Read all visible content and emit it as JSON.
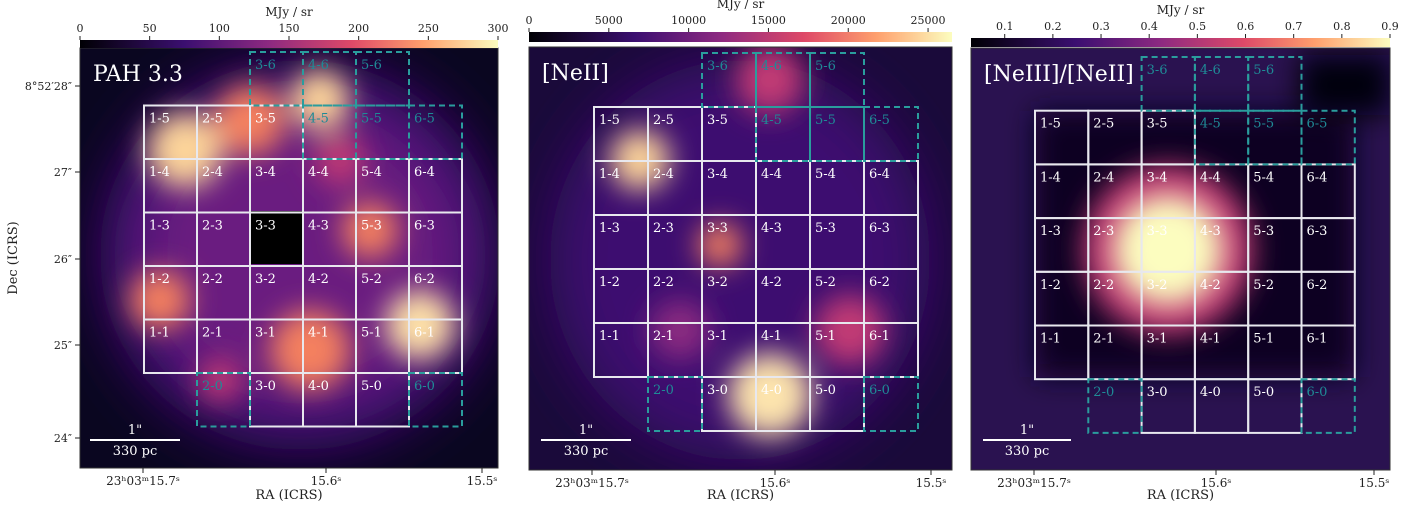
{
  "panels": [
    {
      "title": "PAH 3.3",
      "colorbar": {
        "label": "MJy / sr",
        "range": [
          0,
          300
        ],
        "ticks": [
          0,
          50,
          100,
          150,
          200,
          250,
          300
        ]
      },
      "x_axis": {
        "label": "RA (ICRS)",
        "ticks": [
          "23ʰ03ᵐ15.7ˢ",
          "15.6ˢ",
          "15.5ˢ"
        ]
      },
      "y_axis": {
        "label": "Dec (ICRS)",
        "ticks": [
          "8°52′28″",
          "27″",
          "26″",
          "25″",
          "24″"
        ]
      },
      "scale_bar": {
        "length": "1\"",
        "distance": "330 pc"
      },
      "cells": [
        {
          "label": "3-6",
          "outline": "dashed"
        },
        {
          "label": "4-6",
          "outline": "dashed"
        },
        {
          "label": "5-6",
          "outline": "dashed"
        },
        {
          "label": "1-5",
          "outline": "solid"
        },
        {
          "label": "2-5",
          "outline": "solid"
        },
        {
          "label": "3-5",
          "outline": "solid"
        },
        {
          "label": "4-5",
          "outline": "dashed"
        },
        {
          "label": "5-5",
          "outline": "dashed"
        },
        {
          "label": "6-5",
          "outline": "dashed"
        },
        {
          "label": "1-4",
          "outline": "solid"
        },
        {
          "label": "2-4",
          "outline": "solid"
        },
        {
          "label": "3-4",
          "outline": "solid"
        },
        {
          "label": "4-4",
          "outline": "solid"
        },
        {
          "label": "5-4",
          "outline": "solid"
        },
        {
          "label": "6-4",
          "outline": "solid"
        },
        {
          "label": "1-3",
          "outline": "solid"
        },
        {
          "label": "2-3",
          "outline": "solid"
        },
        {
          "label": "3-3",
          "outline": "solid"
        },
        {
          "label": "4-3",
          "outline": "solid"
        },
        {
          "label": "5-3",
          "outline": "solid"
        },
        {
          "label": "6-3",
          "outline": "solid"
        },
        {
          "label": "1-2",
          "outline": "solid"
        },
        {
          "label": "2-2",
          "outline": "solid"
        },
        {
          "label": "3-2",
          "outline": "solid"
        },
        {
          "label": "4-2",
          "outline": "solid"
        },
        {
          "label": "5-2",
          "outline": "solid"
        },
        {
          "label": "6-2",
          "outline": "solid"
        },
        {
          "label": "1-1",
          "outline": "solid"
        },
        {
          "label": "2-1",
          "outline": "solid"
        },
        {
          "label": "3-1",
          "outline": "solid"
        },
        {
          "label": "4-1",
          "outline": "solid"
        },
        {
          "label": "5-1",
          "outline": "solid"
        },
        {
          "label": "6-1",
          "outline": "solid"
        },
        {
          "label": "2-0",
          "outline": "dashed"
        },
        {
          "label": "3-0",
          "outline": "solid"
        },
        {
          "label": "4-0",
          "outline": "solid"
        },
        {
          "label": "5-0",
          "outline": "solid"
        },
        {
          "label": "6-0",
          "outline": "dashed"
        }
      ]
    },
    {
      "title": "[NeII]",
      "colorbar": {
        "label": "MJy / sr",
        "range": [
          0,
          26500
        ],
        "ticks": [
          0,
          5000,
          10000,
          15000,
          20000,
          25000
        ]
      },
      "x_axis": {
        "label": "RA (ICRS)",
        "ticks": [
          "23ʰ03ᵐ15.7ˢ",
          "15.6ˢ",
          "15.5ˢ"
        ]
      },
      "scale_bar": {
        "length": "1\"",
        "distance": "330 pc"
      },
      "cells": [
        {
          "label": "3-6",
          "outline": "dashed"
        },
        {
          "label": "4-6",
          "outline": "dashed"
        },
        {
          "label": "5-6",
          "outline": "dashed"
        },
        {
          "label": "1-5",
          "outline": "solid"
        },
        {
          "label": "2-5",
          "outline": "solid"
        },
        {
          "label": "3-5",
          "outline": "solid"
        },
        {
          "label": "4-5",
          "outline": "dashed"
        },
        {
          "label": "5-5",
          "outline": "dashed"
        },
        {
          "label": "6-5",
          "outline": "dashed"
        },
        {
          "label": "1-4",
          "outline": "solid"
        },
        {
          "label": "2-4",
          "outline": "solid"
        },
        {
          "label": "3-4",
          "outline": "solid"
        },
        {
          "label": "4-4",
          "outline": "solid"
        },
        {
          "label": "5-4",
          "outline": "solid"
        },
        {
          "label": "6-4",
          "outline": "solid"
        },
        {
          "label": "1-3",
          "outline": "solid"
        },
        {
          "label": "2-3",
          "outline": "solid"
        },
        {
          "label": "3-3",
          "outline": "solid"
        },
        {
          "label": "4-3",
          "outline": "solid"
        },
        {
          "label": "5-3",
          "outline": "solid"
        },
        {
          "label": "6-3",
          "outline": "solid"
        },
        {
          "label": "1-2",
          "outline": "solid"
        },
        {
          "label": "2-2",
          "outline": "solid"
        },
        {
          "label": "3-2",
          "outline": "solid"
        },
        {
          "label": "4-2",
          "outline": "solid"
        },
        {
          "label": "5-2",
          "outline": "solid"
        },
        {
          "label": "6-2",
          "outline": "solid"
        },
        {
          "label": "1-1",
          "outline": "solid"
        },
        {
          "label": "2-1",
          "outline": "solid"
        },
        {
          "label": "3-1",
          "outline": "solid"
        },
        {
          "label": "4-1",
          "outline": "solid"
        },
        {
          "label": "5-1",
          "outline": "solid"
        },
        {
          "label": "6-1",
          "outline": "solid"
        },
        {
          "label": "2-0",
          "outline": "dashed"
        },
        {
          "label": "3-0",
          "outline": "solid"
        },
        {
          "label": "4-0",
          "outline": "solid"
        },
        {
          "label": "5-0",
          "outline": "solid"
        },
        {
          "label": "6-0",
          "outline": "dashed"
        }
      ]
    },
    {
      "title": "[NeIII]/[NeII]",
      "colorbar": {
        "label": "MJy / sr",
        "range": [
          0.03,
          0.9
        ],
        "ticks": [
          0.1,
          0.2,
          0.3,
          0.4,
          0.5,
          0.6,
          0.7,
          0.8,
          0.9
        ]
      },
      "x_axis": {
        "label": "RA (ICRS)",
        "ticks": [
          "23ʰ03ᵐ15.7ˢ",
          "15.6ˢ",
          "15.5ˢ"
        ]
      },
      "scale_bar": {
        "length": "1\"",
        "distance": "330 pc"
      },
      "cells": [
        {
          "label": "3-6",
          "outline": "dashed"
        },
        {
          "label": "4-6",
          "outline": "dashed"
        },
        {
          "label": "5-6",
          "outline": "dashed"
        },
        {
          "label": "1-5",
          "outline": "solid"
        },
        {
          "label": "2-5",
          "outline": "solid"
        },
        {
          "label": "3-5",
          "outline": "solid"
        },
        {
          "label": "4-5",
          "outline": "dashed"
        },
        {
          "label": "5-5",
          "outline": "dashed"
        },
        {
          "label": "6-5",
          "outline": "dashed"
        },
        {
          "label": "1-4",
          "outline": "solid"
        },
        {
          "label": "2-4",
          "outline": "solid"
        },
        {
          "label": "3-4",
          "outline": "solid"
        },
        {
          "label": "4-4",
          "outline": "solid"
        },
        {
          "label": "5-4",
          "outline": "solid"
        },
        {
          "label": "6-4",
          "outline": "solid"
        },
        {
          "label": "1-3",
          "outline": "solid"
        },
        {
          "label": "2-3",
          "outline": "solid"
        },
        {
          "label": "3-3",
          "outline": "solid"
        },
        {
          "label": "4-3",
          "outline": "solid"
        },
        {
          "label": "5-3",
          "outline": "solid"
        },
        {
          "label": "6-3",
          "outline": "solid"
        },
        {
          "label": "1-2",
          "outline": "solid"
        },
        {
          "label": "2-2",
          "outline": "solid"
        },
        {
          "label": "3-2",
          "outline": "solid"
        },
        {
          "label": "4-2",
          "outline": "solid"
        },
        {
          "label": "5-2",
          "outline": "solid"
        },
        {
          "label": "6-2",
          "outline": "solid"
        },
        {
          "label": "1-1",
          "outline": "solid"
        },
        {
          "label": "2-1",
          "outline": "solid"
        },
        {
          "label": "3-1",
          "outline": "solid"
        },
        {
          "label": "4-1",
          "outline": "solid"
        },
        {
          "label": "5-1",
          "outline": "solid"
        },
        {
          "label": "6-1",
          "outline": "solid"
        },
        {
          "label": "2-0",
          "outline": "dashed"
        },
        {
          "label": "3-0",
          "outline": "solid"
        },
        {
          "label": "4-0",
          "outline": "solid"
        },
        {
          "label": "5-0",
          "outline": "solid"
        },
        {
          "label": "6-0",
          "outline": "dashed"
        }
      ]
    }
  ]
}
